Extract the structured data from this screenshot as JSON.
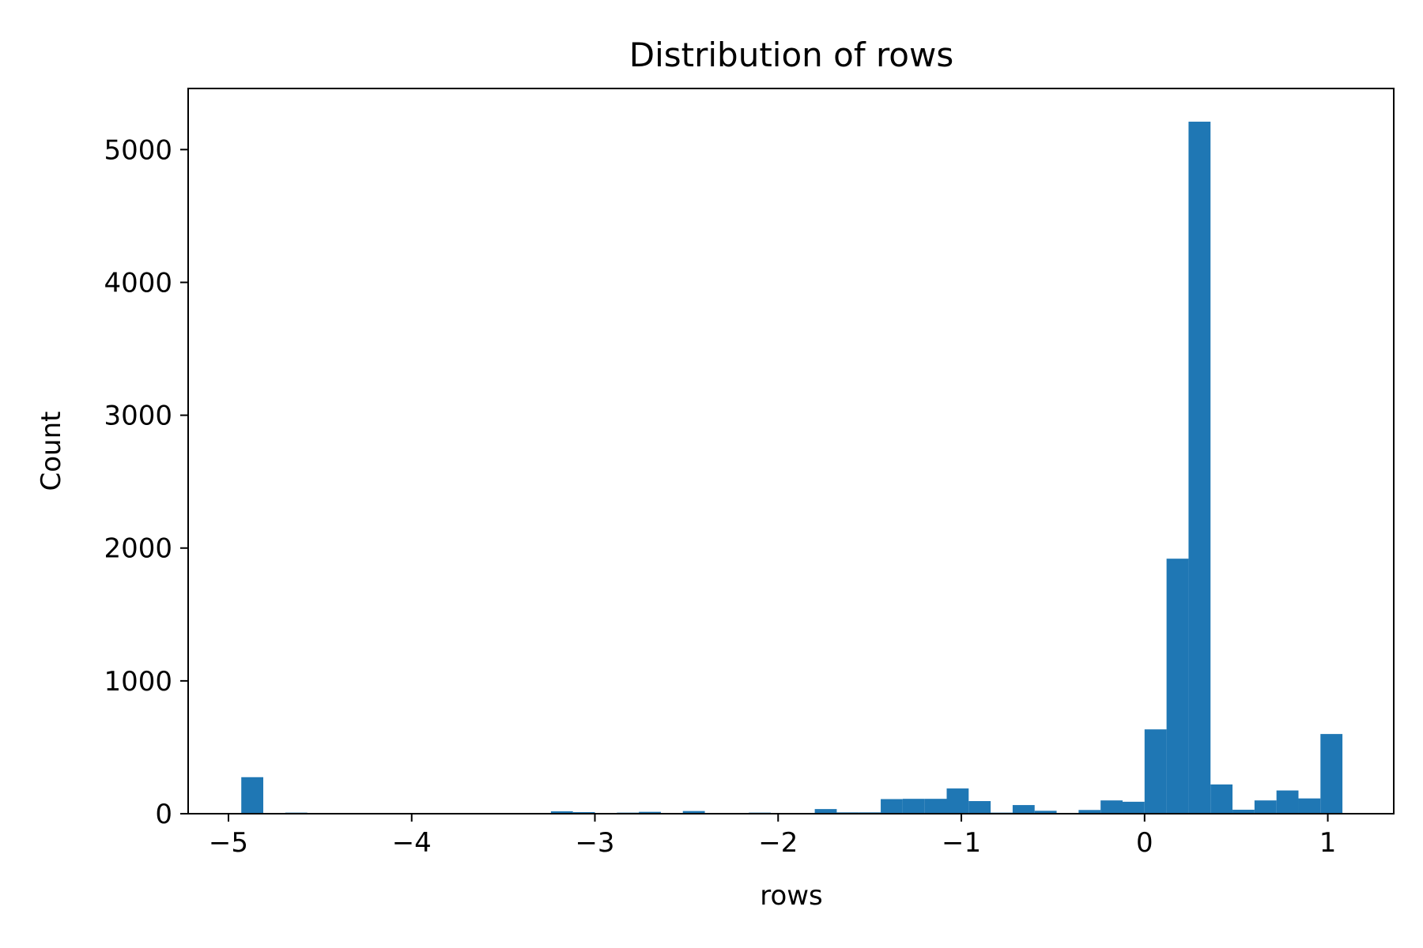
{
  "chart_data": {
    "type": "bar",
    "title": "Distribution of rows",
    "xlabel": "rows",
    "ylabel": "Count",
    "xlim": [
      -5.22,
      1.36
    ],
    "ylim": [
      0,
      5460
    ],
    "xticks": [
      {
        "value": -5,
        "label": "−5"
      },
      {
        "value": -4,
        "label": "−4"
      },
      {
        "value": -3,
        "label": "−3"
      },
      {
        "value": -2,
        "label": "−2"
      },
      {
        "value": -1,
        "label": "−1"
      },
      {
        "value": 0,
        "label": "0"
      },
      {
        "value": 1,
        "label": "1"
      }
    ],
    "yticks": [
      {
        "value": 0,
        "label": "0"
      },
      {
        "value": 1000,
        "label": "1000"
      },
      {
        "value": 2000,
        "label": "2000"
      },
      {
        "value": 3000,
        "label": "3000"
      },
      {
        "value": 4000,
        "label": "4000"
      },
      {
        "value": 5000,
        "label": "5000"
      }
    ],
    "grid": false,
    "bar_color": "#1f77b4",
    "bins": [
      {
        "x0": -4.93,
        "x1": -4.81,
        "count": 275
      },
      {
        "x0": -4.69,
        "x1": -4.57,
        "count": 8
      },
      {
        "x0": -3.36,
        "x1": -3.24,
        "count": 6
      },
      {
        "x0": -3.24,
        "x1": -3.12,
        "count": 18
      },
      {
        "x0": -3.12,
        "x1": -3.0,
        "count": 12
      },
      {
        "x0": -2.88,
        "x1": -2.76,
        "count": 8
      },
      {
        "x0": -2.76,
        "x1": -2.64,
        "count": 14
      },
      {
        "x0": -2.52,
        "x1": -2.4,
        "count": 20
      },
      {
        "x0": -2.16,
        "x1": -2.04,
        "count": 8
      },
      {
        "x0": -1.8,
        "x1": -1.68,
        "count": 35
      },
      {
        "x0": -1.68,
        "x1": -1.56,
        "count": 10
      },
      {
        "x0": -1.56,
        "x1": -1.44,
        "count": 10
      },
      {
        "x0": -1.44,
        "x1": -1.32,
        "count": 110
      },
      {
        "x0": -1.32,
        "x1": -1.2,
        "count": 112
      },
      {
        "x0": -1.2,
        "x1": -1.08,
        "count": 112
      },
      {
        "x0": -1.08,
        "x1": -0.96,
        "count": 190
      },
      {
        "x0": -0.96,
        "x1": -0.84,
        "count": 95
      },
      {
        "x0": -0.84,
        "x1": -0.72,
        "count": 8
      },
      {
        "x0": -0.72,
        "x1": -0.6,
        "count": 65
      },
      {
        "x0": -0.6,
        "x1": -0.48,
        "count": 22
      },
      {
        "x0": -0.48,
        "x1": -0.36,
        "count": 6
      },
      {
        "x0": -0.36,
        "x1": -0.24,
        "count": 28
      },
      {
        "x0": -0.24,
        "x1": -0.12,
        "count": 100
      },
      {
        "x0": -0.12,
        "x1": 0.0,
        "count": 90
      },
      {
        "x0": 0.0,
        "x1": 0.12,
        "count": 635
      },
      {
        "x0": 0.12,
        "x1": 0.24,
        "count": 1920
      },
      {
        "x0": 0.24,
        "x1": 0.36,
        "count": 5210
      },
      {
        "x0": 0.36,
        "x1": 0.48,
        "count": 220
      },
      {
        "x0": 0.48,
        "x1": 0.6,
        "count": 30
      },
      {
        "x0": 0.6,
        "x1": 0.72,
        "count": 100
      },
      {
        "x0": 0.72,
        "x1": 0.84,
        "count": 175
      },
      {
        "x0": 0.84,
        "x1": 0.96,
        "count": 115
      },
      {
        "x0": 0.96,
        "x1": 1.08,
        "count": 600
      }
    ]
  }
}
